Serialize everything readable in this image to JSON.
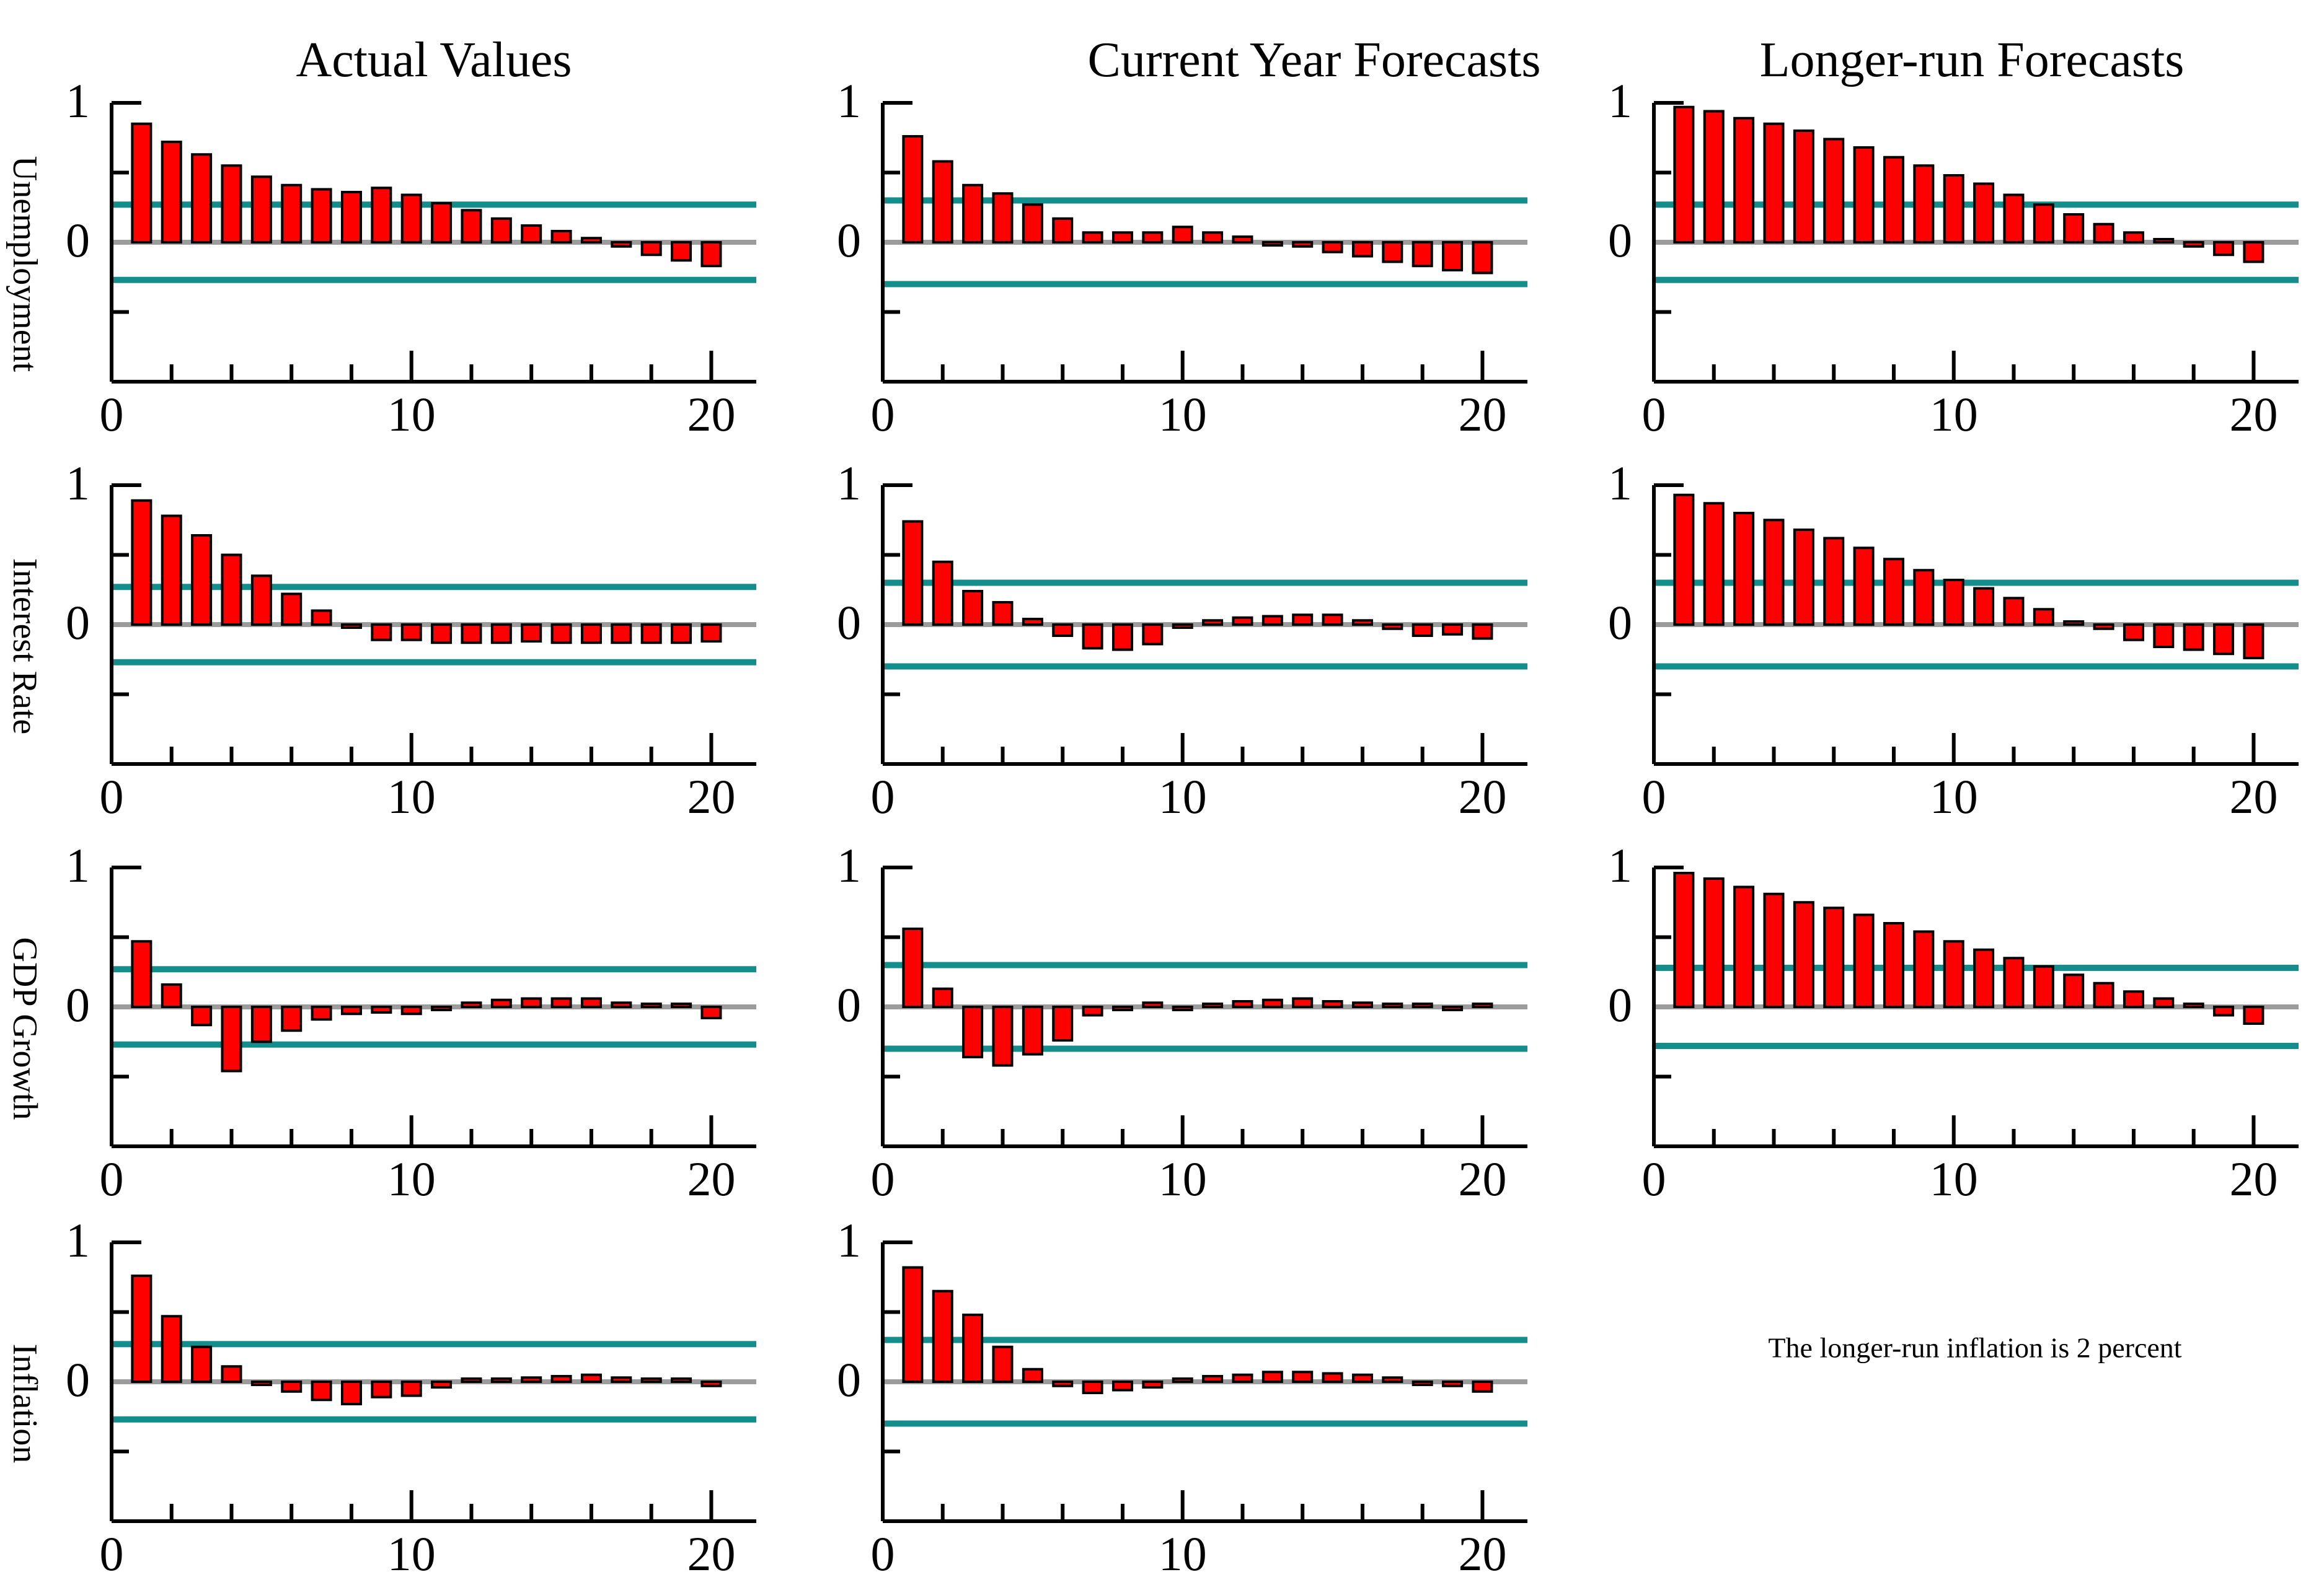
{
  "column_titles": [
    "Actual Values",
    "Current Year Forecasts",
    "Longer-run Forecasts"
  ],
  "row_labels": [
    "Unemployment",
    "Interest Rate",
    "GDP Growth",
    "Inflation"
  ],
  "note": {
    "text": "The longer-run inflation is 2 percent"
  },
  "colors": {
    "bar_fill": "#ff0000",
    "bar_stroke": "#000000",
    "zero_line": "#9c9c9c",
    "band_line": "#148d8d",
    "axis": "#000000"
  },
  "axis_common": {
    "xlim": [
      0,
      21.5
    ],
    "ylim": [
      -1,
      1
    ],
    "x_ticks_labeled": [
      0,
      10,
      20
    ],
    "x_ticks_minor": [
      2,
      4,
      6,
      8,
      12,
      14,
      16,
      18
    ],
    "y_ticks_labeled": [
      1,
      0
    ],
    "y_ticks_minor": [
      0.5,
      -0.5
    ],
    "grid": "off",
    "legend": "none"
  },
  "lags": [
    1,
    2,
    3,
    4,
    5,
    6,
    7,
    8,
    9,
    10,
    11,
    12,
    13,
    14,
    15,
    16,
    17,
    18,
    19,
    20
  ],
  "chart_data": [
    {
      "type": "bar",
      "grid": [
        0,
        0
      ],
      "row_label": "Unemployment",
      "column": "Actual Values",
      "band_upper": 0.27,
      "band_lower": -0.27,
      "values": [
        0.85,
        0.72,
        0.63,
        0.55,
        0.47,
        0.41,
        0.38,
        0.36,
        0.39,
        0.34,
        0.28,
        0.23,
        0.17,
        0.12,
        0.08,
        0.03,
        -0.03,
        -0.09,
        -0.13,
        -0.17
      ]
    },
    {
      "type": "bar",
      "grid": [
        0,
        1
      ],
      "row_label": "Unemployment",
      "column": "Current Year Forecasts",
      "band_upper": 0.3,
      "band_lower": -0.3,
      "values": [
        0.76,
        0.58,
        0.41,
        0.35,
        0.27,
        0.17,
        0.07,
        0.07,
        0.07,
        0.11,
        0.07,
        0.04,
        -0.01,
        -0.03,
        -0.07,
        -0.1,
        -0.14,
        -0.17,
        -0.2,
        -0.22
      ]
    },
    {
      "type": "bar",
      "grid": [
        0,
        2
      ],
      "row_label": "Unemployment",
      "column": "Longer-run Forecasts",
      "band_upper": 0.27,
      "band_lower": -0.27,
      "values": [
        0.97,
        0.94,
        0.89,
        0.85,
        0.8,
        0.74,
        0.68,
        0.61,
        0.55,
        0.48,
        0.42,
        0.34,
        0.27,
        0.2,
        0.13,
        0.07,
        0.01,
        -0.03,
        -0.09,
        -0.14
      ]
    },
    {
      "type": "bar",
      "grid": [
        1,
        0
      ],
      "row_label": "Interest Rate",
      "column": "Actual Values",
      "band_upper": 0.27,
      "band_lower": -0.27,
      "values": [
        0.89,
        0.78,
        0.64,
        0.5,
        0.35,
        0.22,
        0.1,
        -0.01,
        -0.11,
        -0.11,
        -0.13,
        -0.13,
        -0.13,
        -0.12,
        -0.13,
        -0.13,
        -0.13,
        -0.13,
        -0.13,
        -0.12
      ]
    },
    {
      "type": "bar",
      "grid": [
        1,
        1
      ],
      "row_label": "Interest Rate",
      "column": "Current Year Forecasts",
      "band_upper": 0.3,
      "band_lower": -0.3,
      "values": [
        0.74,
        0.45,
        0.24,
        0.16,
        0.04,
        -0.08,
        -0.17,
        -0.18,
        -0.14,
        -0.01,
        0.03,
        0.05,
        0.06,
        0.07,
        0.07,
        0.03,
        -0.03,
        -0.08,
        -0.07,
        -0.1
      ]
    },
    {
      "type": "bar",
      "grid": [
        1,
        2
      ],
      "row_label": "Interest Rate",
      "column": "Longer-run Forecasts",
      "band_upper": 0.3,
      "band_lower": -0.3,
      "values": [
        0.93,
        0.87,
        0.8,
        0.75,
        0.68,
        0.62,
        0.55,
        0.47,
        0.39,
        0.32,
        0.26,
        0.19,
        0.11,
        0.02,
        -0.03,
        -0.11,
        -0.16,
        -0.18,
        -0.21,
        -0.24
      ]
    },
    {
      "type": "bar",
      "grid": [
        2,
        0
      ],
      "row_label": "GDP Growth",
      "column": "Actual Values",
      "band_upper": 0.27,
      "band_lower": -0.27,
      "values": [
        0.47,
        0.16,
        -0.13,
        -0.46,
        -0.25,
        -0.17,
        -0.09,
        -0.05,
        -0.04,
        -0.05,
        -0.01,
        0.03,
        0.05,
        0.06,
        0.06,
        0.06,
        0.03,
        0.02,
        0.0,
        -0.08
      ]
    },
    {
      "type": "bar",
      "grid": [
        2,
        1
      ],
      "row_label": "GDP Growth",
      "column": "Current Year Forecasts",
      "band_upper": 0.3,
      "band_lower": -0.3,
      "values": [
        0.56,
        0.13,
        -0.36,
        -0.42,
        -0.34,
        -0.24,
        -0.06,
        -0.01,
        0.03,
        -0.01,
        0.01,
        0.04,
        0.05,
        0.06,
        0.04,
        0.03,
        0.0,
        0.0,
        -0.01,
        0.0
      ]
    },
    {
      "type": "bar",
      "grid": [
        2,
        2
      ],
      "row_label": "GDP Growth",
      "column": "Longer-run Forecasts",
      "band_upper": 0.28,
      "band_lower": -0.28,
      "values": [
        0.96,
        0.92,
        0.86,
        0.81,
        0.75,
        0.71,
        0.66,
        0.6,
        0.54,
        0.47,
        0.41,
        0.35,
        0.29,
        0.23,
        0.17,
        0.11,
        0.06,
        0.01,
        -0.06,
        -0.12
      ]
    },
    {
      "type": "bar",
      "grid": [
        3,
        0
      ],
      "row_label": "Inflation",
      "column": "Actual Values",
      "band_upper": 0.27,
      "band_lower": -0.27,
      "values": [
        0.76,
        0.47,
        0.25,
        0.11,
        -0.01,
        -0.07,
        -0.13,
        -0.16,
        -0.11,
        -0.1,
        -0.04,
        0.0,
        0.01,
        0.03,
        0.04,
        0.05,
        0.03,
        0.02,
        0.0,
        -0.03
      ]
    },
    {
      "type": "bar",
      "grid": [
        3,
        1
      ],
      "row_label": "Inflation",
      "column": "Current Year Forecasts",
      "band_upper": 0.3,
      "band_lower": -0.3,
      "values": [
        0.82,
        0.65,
        0.48,
        0.25,
        0.09,
        -0.03,
        -0.08,
        -0.06,
        -0.04,
        0.02,
        0.04,
        0.05,
        0.07,
        0.07,
        0.06,
        0.05,
        0.03,
        -0.01,
        -0.03,
        -0.07
      ]
    }
  ]
}
